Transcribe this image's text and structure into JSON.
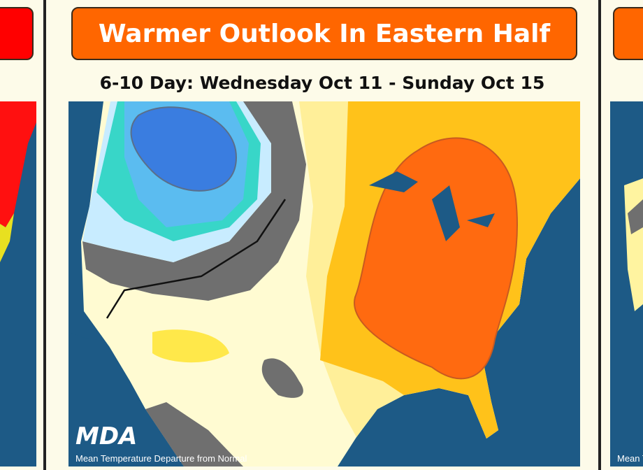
{
  "main_slide": {
    "title": "Warmer Outlook In Eastern Half",
    "subtitle": "6-10 Day: Wednesday Oct 11 - Sunday Oct 15",
    "logo": "MDA",
    "caption": "Mean Temperature Departure from Normal"
  },
  "right_slide": {
    "caption": "Mean Temperature Departure from Normal"
  }
}
